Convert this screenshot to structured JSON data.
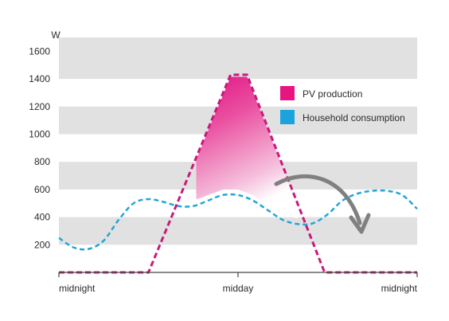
{
  "chart_data": {
    "type": "line",
    "title": "",
    "xlabel": "",
    "ylabel": "W",
    "ylim": [
      0,
      1700
    ],
    "xlim": [
      0,
      24
    ],
    "y_ticks": [
      200,
      400,
      600,
      800,
      1000,
      1200,
      1400,
      1600
    ],
    "x_ticks": [
      {
        "label": "midnight",
        "x": 0
      },
      {
        "label": "midday",
        "x": 12
      },
      {
        "label": "midnight",
        "x": 24
      }
    ],
    "grid": "alternating horizontal bands",
    "legend_position": "top-right",
    "series": [
      {
        "name": "PV production",
        "color": "#c8197d",
        "style": "dashed",
        "points": [
          [
            0,
            0
          ],
          [
            6,
            0
          ],
          [
            11.5,
            1430
          ],
          [
            12.6,
            1430
          ],
          [
            17.8,
            0
          ],
          [
            24,
            0
          ]
        ]
      },
      {
        "name": "Household consumption",
        "color": "#21a6d6",
        "style": "dashed",
        "points": [
          [
            0,
            250
          ],
          [
            1,
            180
          ],
          [
            2,
            170
          ],
          [
            3,
            230
          ],
          [
            4,
            380
          ],
          [
            5,
            500
          ],
          [
            6,
            530
          ],
          [
            7,
            510
          ],
          [
            8,
            480
          ],
          [
            9,
            480
          ],
          [
            10,
            520
          ],
          [
            11,
            560
          ],
          [
            12,
            560
          ],
          [
            13,
            520
          ],
          [
            14,
            450
          ],
          [
            15,
            380
          ],
          [
            16,
            350
          ],
          [
            17,
            355
          ],
          [
            18,
            420
          ],
          [
            19,
            520
          ],
          [
            20,
            570
          ],
          [
            21,
            590
          ],
          [
            22,
            590
          ],
          [
            23,
            560
          ],
          [
            24,
            460
          ]
        ]
      }
    ],
    "legend_swatch_colors": {
      "PV production": "#e6157f",
      "Household consumption": "#1aa3dc"
    },
    "band_color": "#e1e1e1",
    "arrow_color": "#808080"
  }
}
